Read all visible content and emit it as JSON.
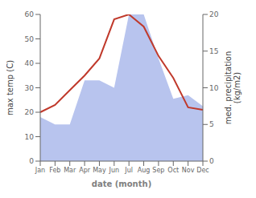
{
  "chart_data": {
    "type": "line",
    "categories": [
      "Jan",
      "Feb",
      "Mar",
      "Apr",
      "May",
      "Jun",
      "Jul",
      "Aug",
      "Sep",
      "Oct",
      "Nov",
      "Dec"
    ],
    "series": [
      {
        "type": "area",
        "axis": "y2",
        "color": "#b8c4ee",
        "values": [
          6,
          5,
          5,
          11,
          11,
          10,
          20,
          20,
          14,
          8.5,
          9,
          7.5
        ]
      },
      {
        "type": "line",
        "color": "#c0392b",
        "values": [
          20,
          23,
          29,
          35,
          42,
          58,
          60,
          55,
          43,
          34,
          22,
          21
        ]
      }
    ],
    "xlabel": "date (month)",
    "ylabel": "max temp (C)",
    "y2label": "med. precipitation\n(kg/m2)",
    "ylim": [
      0,
      60
    ],
    "yticks": [
      0,
      10,
      20,
      30,
      40,
      50,
      60
    ],
    "y2lim": [
      0,
      20
    ],
    "y2ticks": [
      0,
      5,
      10,
      15,
      20
    ],
    "grid": false
  }
}
